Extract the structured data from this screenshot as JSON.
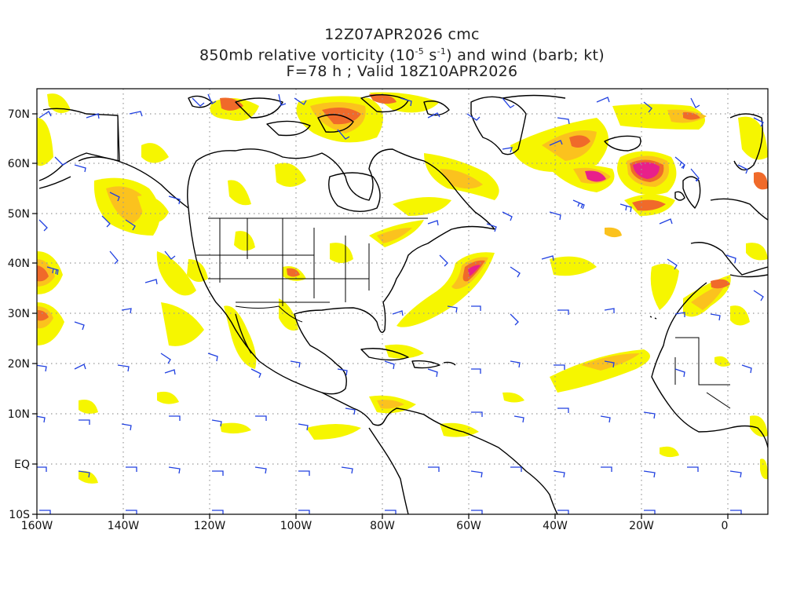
{
  "title": {
    "line1": "12Z07APR2026 cmc",
    "line2_a": "850mb relative vorticity (10",
    "line2_exp1": "-5",
    "line2_b": " s",
    "line2_exp2": "-1",
    "line2_c": ") and wind (barb; kt)",
    "line3": "F=78 h ; Valid 18Z10APR2026"
  },
  "axes": {
    "lon_labels": [
      "160W",
      "140W",
      "120W",
      "100W",
      "80W",
      "60W",
      "40W",
      "20W",
      "0"
    ],
    "lat_labels": [
      "70N",
      "60N",
      "50N",
      "40N",
      "30N",
      "20N",
      "10N",
      "EQ",
      "10S"
    ]
  },
  "colors": {
    "vort_low": "#f6f600",
    "vort_mid": "#fbc21e",
    "vort_high": "#f06a2a",
    "vort_max": "#e8208a",
    "barb": "#2040e0",
    "coast": "#000000",
    "grid": "#999999"
  }
}
